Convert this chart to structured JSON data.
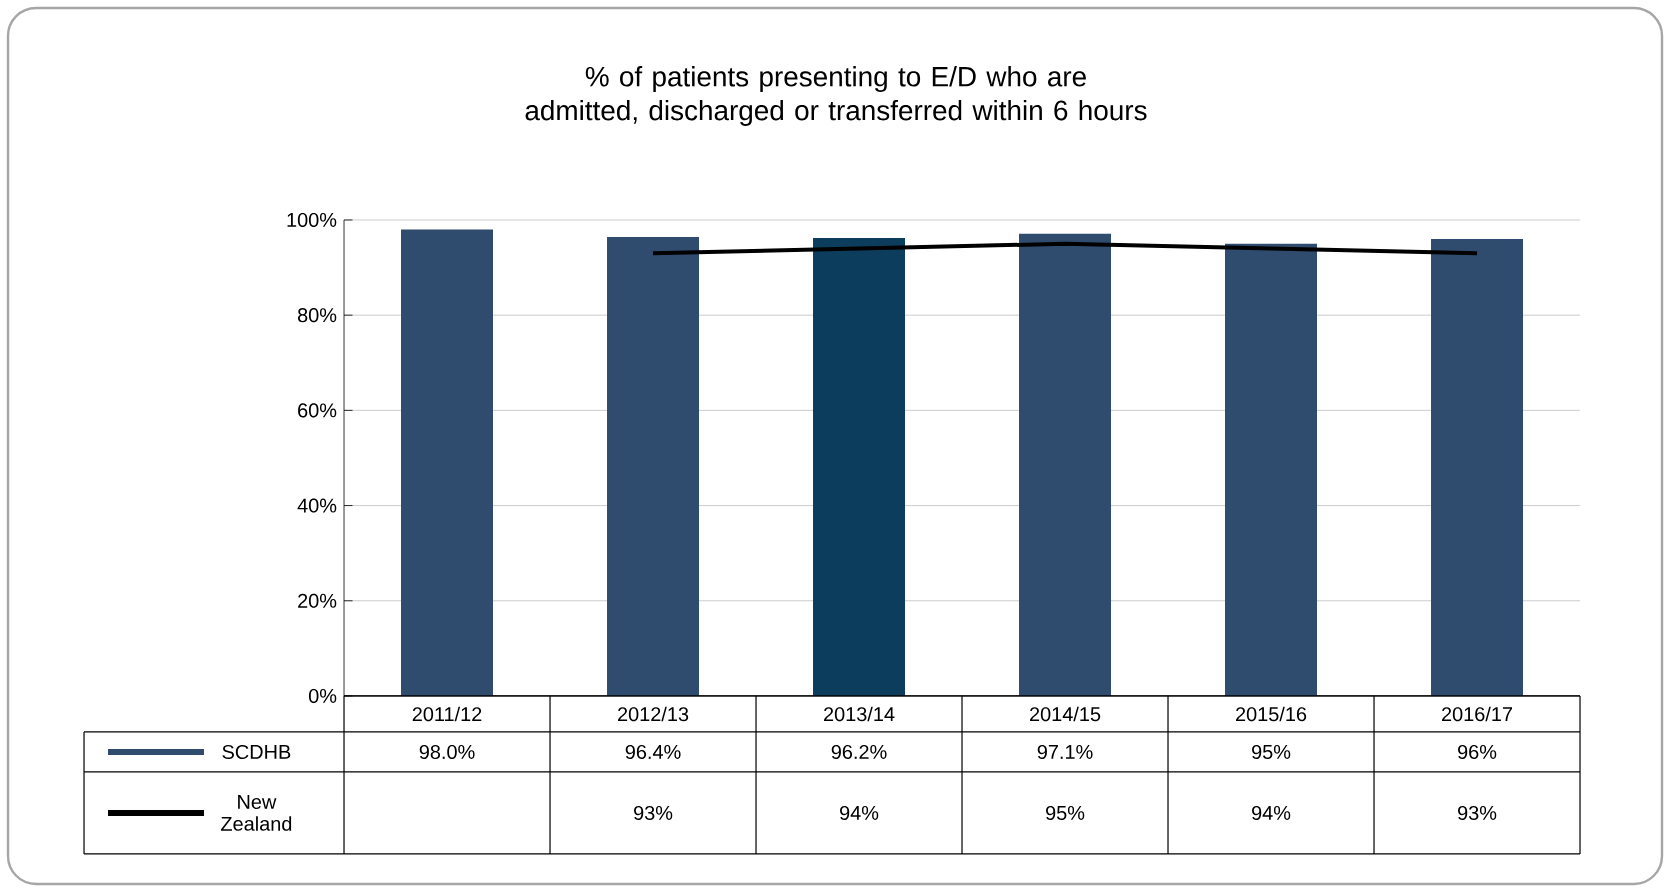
{
  "chart_data": {
    "type": "bar",
    "title": "% of patients presenting to E/D who are admitted, discharged or transferred within 6 hours",
    "categories": [
      "2011/12",
      "2012/13",
      "2013/14",
      "2014/15",
      "2015/16",
      "2016/17"
    ],
    "series": [
      {
        "name": "SCDHB",
        "color": "#2f4b6e",
        "colors": [
          "#2f4b6e",
          "#2f4b6e",
          "#0d3d5c",
          "#2f4b6e",
          "#2f4b6e",
          "#2f4b6e"
        ],
        "values": [
          98.0,
          96.4,
          96.2,
          97.1,
          95,
          96
        ],
        "value_labels": [
          "98.0%",
          "96.4%",
          "96.2%",
          "97.1%",
          "95%",
          "96%"
        ]
      },
      {
        "name": "New Zealand",
        "type": "line",
        "color": "#000000",
        "values": [
          null,
          93,
          94,
          95,
          94,
          93
        ],
        "value_labels": [
          null,
          "93%",
          "94%",
          "95%",
          "94%",
          "93%"
        ]
      }
    ],
    "ylim": [
      0,
      100
    ],
    "yticks": [
      {
        "value": 0,
        "label": "0%"
      },
      {
        "value": 20,
        "label": "20%"
      },
      {
        "value": 40,
        "label": "40%"
      },
      {
        "value": 60,
        "label": "60%"
      },
      {
        "value": 80,
        "label": "80%"
      },
      {
        "value": 100,
        "label": "100%"
      }
    ],
    "grid": "y",
    "legend": "bottom",
    "marker": "none",
    "line_style": "solid"
  }
}
